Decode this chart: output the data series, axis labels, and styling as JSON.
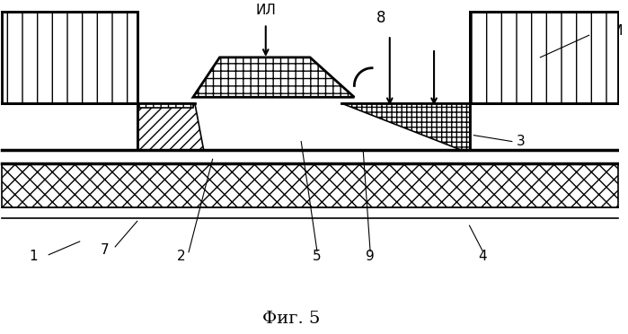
{
  "title": "Фиг. 5",
  "fig_width": 6.99,
  "fig_height": 3.72,
  "dpi": 100,
  "background_color": "#ffffff",
  "IL_label": "ИЛ",
  "FRM_label": "ФРМ",
  "numbers": [
    "1",
    "2",
    "3",
    "4",
    "5",
    "7",
    "8",
    "9"
  ]
}
